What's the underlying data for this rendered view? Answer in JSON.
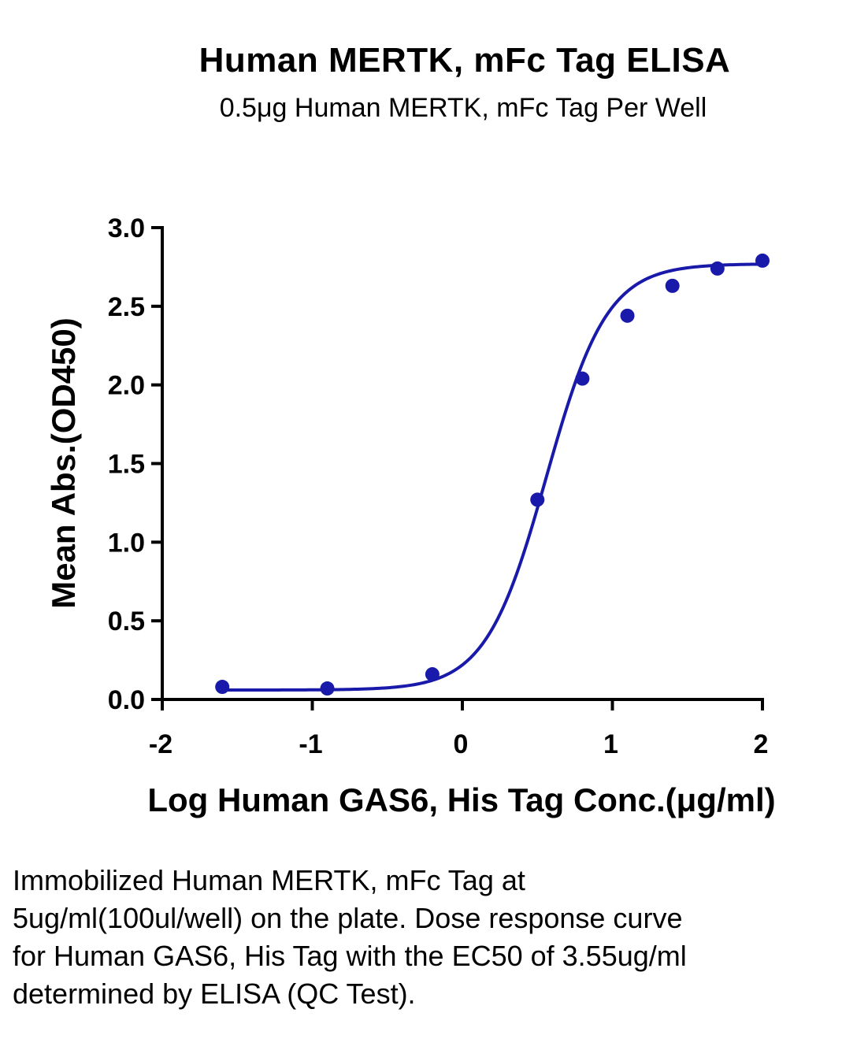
{
  "chart_data": {
    "type": "scatter",
    "title": "Human MERTK, mFc Tag ELISA",
    "subtitle": "0.5μg Human MERTK, mFc Tag Per Well",
    "xlabel": "Log  Human GAS6, His Tag Conc.(μg/ml)",
    "ylabel": "Mean Abs.(OD450)",
    "xlim": [
      -2,
      2
    ],
    "ylim": [
      0,
      3
    ],
    "x_ticks": [
      "-2",
      "-1",
      "0",
      "1",
      "2"
    ],
    "y_ticks": [
      "0.0",
      "0.5",
      "1.0",
      "1.5",
      "2.0",
      "2.5",
      "3.0"
    ],
    "grid": false,
    "series": [
      {
        "color": "#1a1aaa",
        "points": [
          {
            "x": -1.6,
            "y": 0.08
          },
          {
            "x": -0.9,
            "y": 0.07
          },
          {
            "x": -0.2,
            "y": 0.16
          },
          {
            "x": 0.5,
            "y": 1.27
          },
          {
            "x": 0.8,
            "y": 2.04
          },
          {
            "x": 1.1,
            "y": 2.44
          },
          {
            "x": 1.4,
            "y": 2.63
          },
          {
            "x": 1.7,
            "y": 2.74
          },
          {
            "x": 2.0,
            "y": 2.79
          }
        ]
      }
    ]
  },
  "caption": "Immobilized Human MERTK, mFc Tag at 5ug/ml(100ul/well) on the plate. Dose response curve for Human GAS6, His Tag with the EC50 of 3.55ug/ml determined by ELISA (QC Test)."
}
